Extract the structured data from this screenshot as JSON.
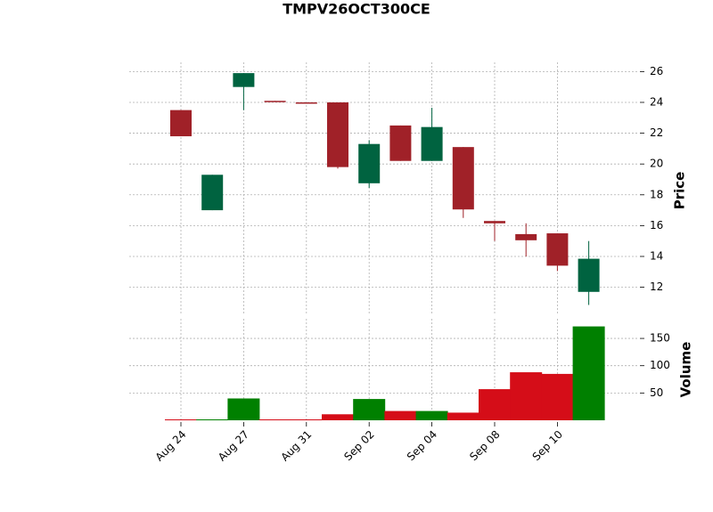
{
  "chart_data": {
    "type": "candlestick",
    "title": "TMPV26OCT300CE",
    "categories": [
      "Aug 24",
      null,
      "Aug 27",
      null,
      "Aug 31",
      null,
      "Sep 02",
      null,
      "Sep 04",
      null,
      "Sep 08",
      null,
      "Sep 10",
      null
    ],
    "open": [
      23.5,
      17.0,
      25.0,
      24.1,
      24.0,
      24.0,
      18.75,
      22.5,
      20.2,
      21.1,
      16.3,
      15.45,
      15.5,
      11.7
    ],
    "high": [
      23.5,
      19.3,
      25.9,
      24.1,
      24.0,
      24.0,
      21.55,
      22.5,
      23.65,
      21.1,
      16.3,
      16.15,
      15.5,
      15.0
    ],
    "low": [
      21.8,
      17.0,
      23.5,
      24.05,
      23.95,
      19.7,
      18.45,
      20.2,
      20.2,
      16.5,
      15.0,
      14.0,
      13.05,
      10.85
    ],
    "close": [
      21.8,
      19.3,
      25.9,
      24.05,
      23.95,
      19.8,
      21.3,
      20.2,
      22.4,
      17.05,
      16.15,
      15.05,
      13.4,
      13.85
    ],
    "volume": [
      1,
      1,
      40,
      0,
      0,
      11,
      39,
      17,
      17,
      14,
      57,
      88,
      85,
      172
    ],
    "ylabel": "Price",
    "volume_label": "Volume",
    "ylim": [
      10.3,
      26.6
    ],
    "yticks": [
      12,
      14,
      16,
      18,
      20,
      22,
      24,
      26
    ],
    "volume_ylim": [
      0,
      186
    ],
    "volume_yticks": [
      50,
      100,
      150
    ],
    "up_color": "#006340",
    "down_color": "#a02128",
    "volume_up_color": "#008000",
    "volume_down_color": "#d50d18",
    "grid": true
  }
}
